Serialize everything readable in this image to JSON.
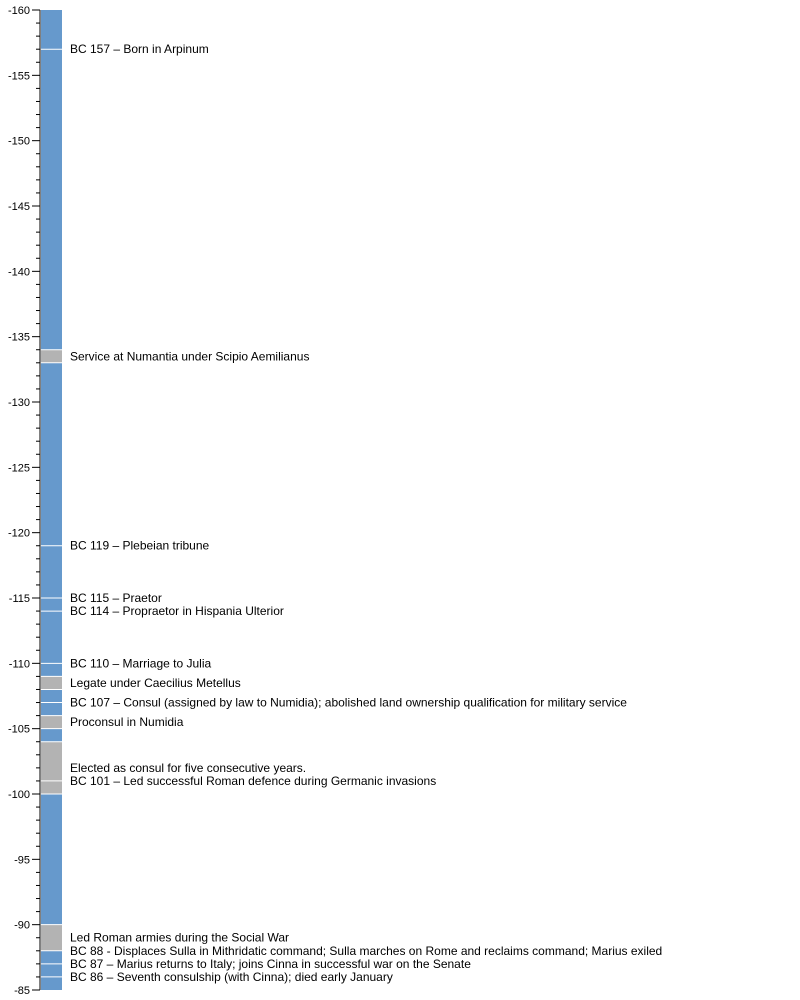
{
  "chart_data": {
    "type": "timeline",
    "axis": {
      "min": -160,
      "max": -85,
      "major_step": 5,
      "minor_step": 1,
      "orientation": "vertical"
    },
    "tick_labels": [
      "-160",
      "-155",
      "-150",
      "-145",
      "-140",
      "-135",
      "-130",
      "-125",
      "-120",
      "-115",
      "-110",
      "-105",
      "-100",
      "-95",
      "-90",
      "-85"
    ],
    "colors": {
      "bar": "#6699cc",
      "period": "#b3b3b3",
      "divider": "#ffffff"
    },
    "periods": [
      {
        "from": -134,
        "to": -133,
        "label": "Service at Numantia under Scipio Aemilianus"
      },
      {
        "from": -109,
        "to": -108,
        "label": "Legate under Caecilius Metellus"
      },
      {
        "from": -106,
        "to": -105,
        "label": "Proconsul in Numidia"
      },
      {
        "from": -104,
        "to": -100,
        "label": "Elected as consul for five consecutive years."
      },
      {
        "from": -90,
        "to": -88,
        "label": "Led Roman armies during the Social War"
      }
    ],
    "events": [
      {
        "year": -157,
        "label": "BC 157 – Born in Arpinum"
      },
      {
        "year": -119,
        "label": "BC 119 – Plebeian tribune"
      },
      {
        "year": -115,
        "label": "BC 115 – Praetor"
      },
      {
        "year": -114,
        "label": "BC 114 – Propraetor in Hispania Ulterior"
      },
      {
        "year": -110,
        "label": "BC 110 – Marriage to Julia"
      },
      {
        "year": -107,
        "label": "BC 107 – Consul (assigned by law to Numidia); abolished land ownership qualification for military service"
      },
      {
        "year": -101,
        "label": "BC 101 – Led successful Roman defence during Germanic invasions"
      },
      {
        "year": -88,
        "label": "BC 88 - Displaces Sulla in Mithridatic command; Sulla marches on Rome and reclaims command; Marius exiled"
      },
      {
        "year": -87,
        "label": "BC 87 – Marius returns to Italy; joins Cinna in successful war on the Senate"
      },
      {
        "year": -86,
        "label": "BC 86 – Seventh consulship (with Cinna); died early January"
      }
    ]
  }
}
